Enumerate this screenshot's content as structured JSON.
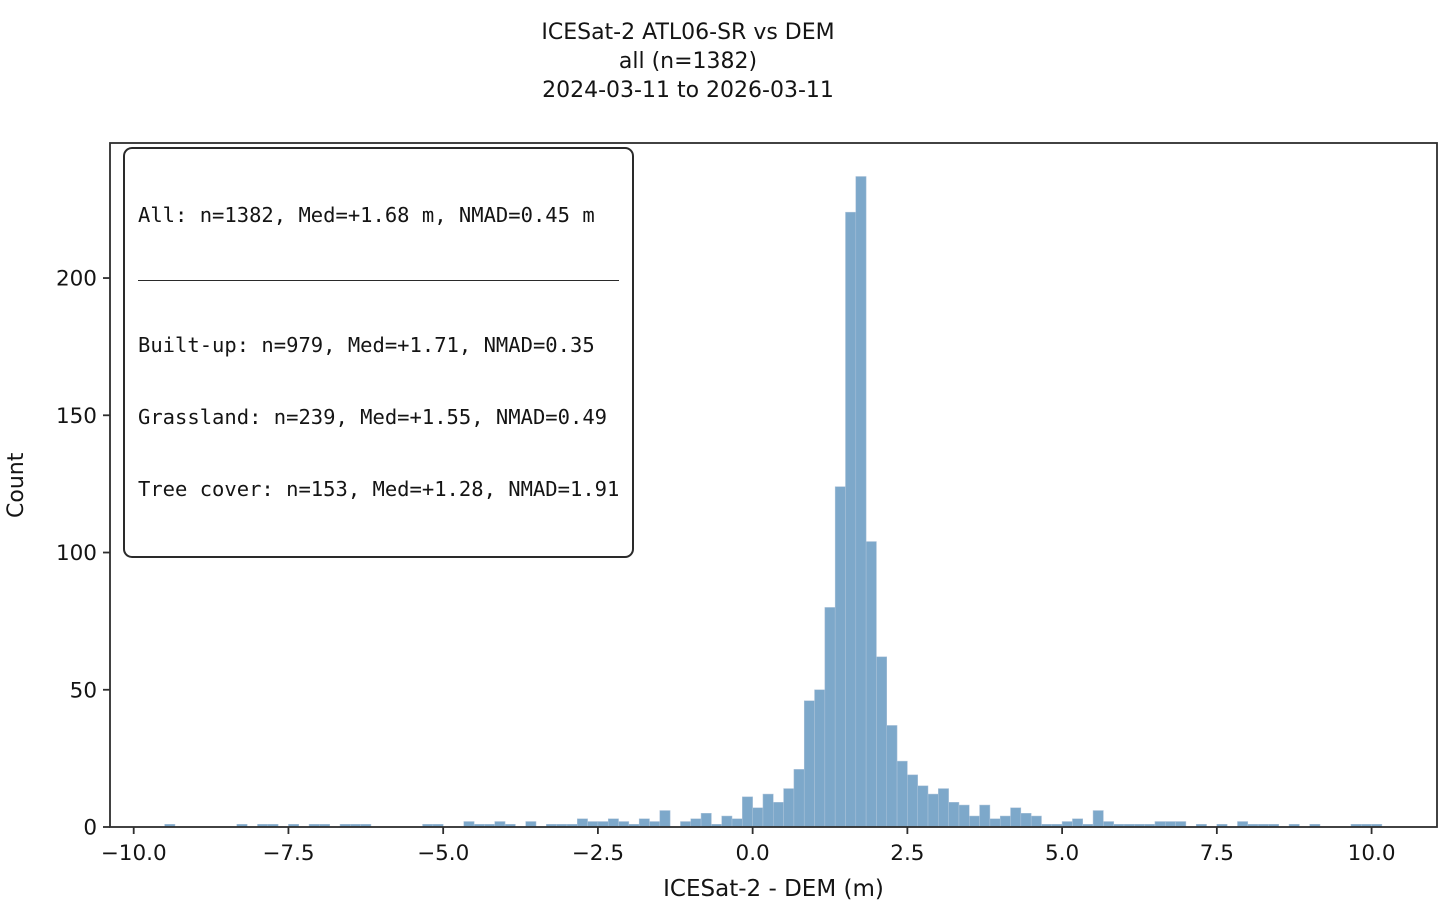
{
  "title": {
    "line1": "ICESat-2 ATL06-SR vs DEM",
    "line2": "all (n=1382)",
    "line3": "2024-03-11 to 2026-03-11"
  },
  "stats_box": {
    "summary": "All: n=1382, Med=+1.68 m, NMAD=0.45 m",
    "rows": [
      "Built-up: n=979, Med=+1.71, NMAD=0.35",
      "Grassland: n=239, Med=+1.55, NMAD=0.49",
      "Tree cover: n=153, Med=+1.28, NMAD=1.91"
    ]
  },
  "axes": {
    "xlabel": "ICESat-2 - DEM (m)",
    "ylabel": "Count",
    "x_tick_values": [
      -10.0,
      -7.5,
      -5.0,
      -2.5,
      0.0,
      2.5,
      5.0,
      7.5,
      10.0
    ],
    "x_tick_labels": [
      "−10.0",
      "−7.5",
      "−5.0",
      "−2.5",
      "0.0",
      "2.5",
      "5.0",
      "7.5",
      "10.0"
    ],
    "y_tick_values": [
      0,
      50,
      100,
      150,
      200
    ],
    "y_tick_labels": [
      "0",
      "50",
      "100",
      "150",
      "200"
    ]
  },
  "chart_data": {
    "type": "bar",
    "subtype": "histogram",
    "title": "ICESat-2 ATL06-SR vs DEM | all (n=1382) | 2024-03-11 to 2026-03-11",
    "xlabel": "ICESat-2 - DEM (m)",
    "ylabel": "Count",
    "n_total": 1382,
    "stats": {
      "all": {
        "n": 1382,
        "med_m": 1.68,
        "nmad_m": 0.45
      },
      "built_up": {
        "n": 979,
        "med_m": 1.71,
        "nmad_m": 0.35
      },
      "grassland": {
        "n": 239,
        "med_m": 1.55,
        "nmad_m": 0.49
      },
      "tree_cover": {
        "n": 153,
        "med_m": 1.28,
        "nmad_m": 1.91
      }
    },
    "xlim": [
      -10.383,
      11.057
    ],
    "ylim": [
      0,
      249.2
    ],
    "grid": false,
    "legend_position": "upper left",
    "bin_width": 0.16667,
    "bins_note": "each entry = [bin left edge (m), count]; bins not listed have count 0",
    "bins": [
      [
        -9.5,
        1
      ],
      [
        -8.3333,
        1
      ],
      [
        -8.0,
        1
      ],
      [
        -7.8333,
        1
      ],
      [
        -7.5,
        1
      ],
      [
        -7.1667,
        1
      ],
      [
        -7.0,
        1
      ],
      [
        -6.6667,
        1
      ],
      [
        -6.5,
        1
      ],
      [
        -6.3333,
        1
      ],
      [
        -5.3333,
        1
      ],
      [
        -5.1667,
        1
      ],
      [
        -4.6667,
        2
      ],
      [
        -4.5,
        1
      ],
      [
        -4.3333,
        1
      ],
      [
        -4.1667,
        2
      ],
      [
        -4.0,
        1
      ],
      [
        -3.6667,
        2
      ],
      [
        -3.3333,
        1
      ],
      [
        -3.1667,
        1
      ],
      [
        -3.0,
        1
      ],
      [
        -2.8333,
        3
      ],
      [
        -2.6667,
        2
      ],
      [
        -2.5,
        2
      ],
      [
        -2.3333,
        3
      ],
      [
        -2.1667,
        2
      ],
      [
        -2.0,
        1
      ],
      [
        -1.8333,
        3
      ],
      [
        -1.6667,
        2
      ],
      [
        -1.5,
        6
      ],
      [
        -1.1667,
        2
      ],
      [
        -1.0,
        3
      ],
      [
        -0.8333,
        5
      ],
      [
        -0.6667,
        1
      ],
      [
        -0.5,
        4
      ],
      [
        -0.3333,
        3
      ],
      [
        -0.1667,
        11
      ],
      [
        0.0,
        7
      ],
      [
        0.1667,
        12
      ],
      [
        0.3333,
        9
      ],
      [
        0.5,
        14
      ],
      [
        0.6667,
        21
      ],
      [
        0.8333,
        46
      ],
      [
        1.0,
        50
      ],
      [
        1.1667,
        80
      ],
      [
        1.3333,
        124
      ],
      [
        1.5,
        224
      ],
      [
        1.6667,
        237
      ],
      [
        1.8333,
        104
      ],
      [
        2.0,
        62
      ],
      [
        2.1667,
        37
      ],
      [
        2.3333,
        24
      ],
      [
        2.5,
        19
      ],
      [
        2.6667,
        15
      ],
      [
        2.8333,
        12
      ],
      [
        3.0,
        14
      ],
      [
        3.1667,
        9
      ],
      [
        3.3333,
        8
      ],
      [
        3.5,
        4
      ],
      [
        3.6667,
        8
      ],
      [
        3.8333,
        3
      ],
      [
        4.0,
        4
      ],
      [
        4.1667,
        7
      ],
      [
        4.3333,
        5
      ],
      [
        4.5,
        4
      ],
      [
        4.6667,
        1
      ],
      [
        4.8333,
        1
      ],
      [
        5.0,
        2
      ],
      [
        5.1667,
        3
      ],
      [
        5.3333,
        1
      ],
      [
        5.5,
        6
      ],
      [
        5.6667,
        2
      ],
      [
        5.8333,
        1
      ],
      [
        6.0,
        1
      ],
      [
        6.1667,
        1
      ],
      [
        6.3333,
        1
      ],
      [
        6.5,
        2
      ],
      [
        6.6667,
        2
      ],
      [
        6.8333,
        2
      ],
      [
        7.1667,
        1
      ],
      [
        7.5,
        1
      ],
      [
        7.8333,
        2
      ],
      [
        8.0,
        1
      ],
      [
        8.1667,
        1
      ],
      [
        8.3333,
        1
      ],
      [
        8.6667,
        1
      ],
      [
        9.0,
        1
      ],
      [
        9.6667,
        1
      ],
      [
        9.8333,
        1
      ],
      [
        10.0,
        1
      ]
    ],
    "colors": {
      "bar_fill": "#7da8ca",
      "bar_edge": "#aec4da",
      "axis": "#2e2e2e",
      "text": "#141414"
    }
  }
}
